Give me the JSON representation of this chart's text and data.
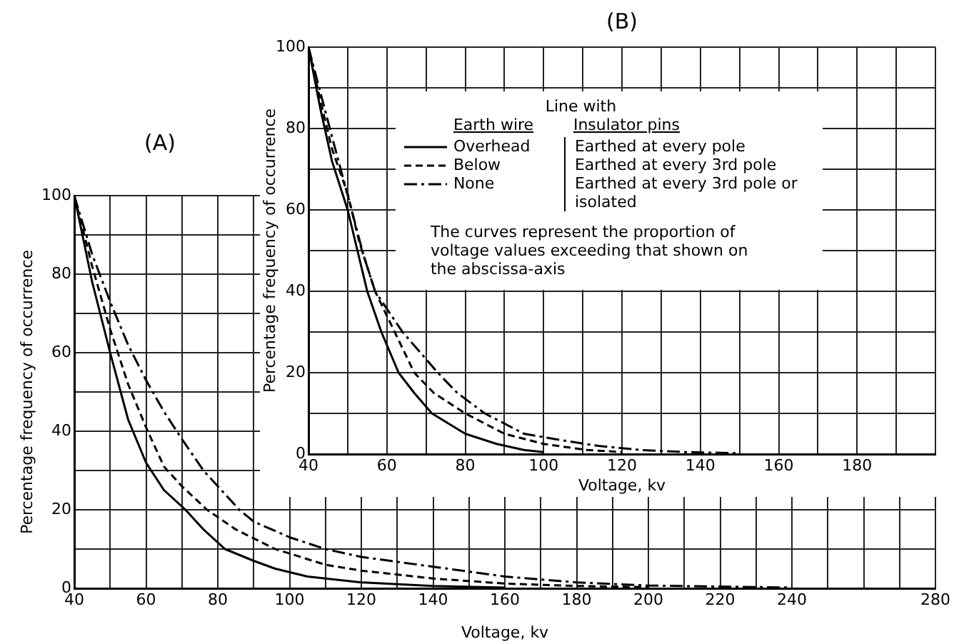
{
  "chart_data": [
    {
      "type": "line",
      "title": "(A)",
      "xlabel": "Voltage, kv",
      "ylabel": "Percentage frequency of occurrence",
      "xlim": [
        40,
        280
      ],
      "xticks": [
        40,
        {
          "value": 50,
          "label": null
        },
        60,
        {
          "value": 70,
          "label": null
        },
        80,
        {
          "value": 90,
          "label": null
        },
        100,
        {
          "value": 110,
          "label": null
        },
        120,
        {
          "value": 130,
          "label": null
        },
        140,
        {
          "value": 150,
          "label": null
        },
        160,
        {
          "value": 170,
          "label": null
        },
        180,
        {
          "value": 190,
          "label": null
        },
        200,
        {
          "value": 210,
          "label": null
        },
        220,
        {
          "value": 230,
          "label": null
        },
        240,
        {
          "value": 250,
          "label": null
        },
        {
          "value": 260,
          "label": null
        },
        {
          "value": 270,
          "label": null
        },
        280
      ],
      "ylim": [
        0,
        100
      ],
      "yticks": [
        0,
        {
          "value": 10,
          "label": null
        },
        20,
        {
          "value": 30,
          "label": null
        },
        40,
        {
          "value": 50,
          "label": null
        },
        60,
        {
          "value": 70,
          "label": null
        },
        80,
        {
          "value": 90,
          "label": null
        },
        100
      ],
      "grid": true,
      "marker": "none",
      "series": [
        {
          "color": "#000000",
          "line_style": "solid",
          "x": [
            40,
            45,
            50,
            55,
            60,
            65,
            71,
            76,
            82,
            90,
            96,
            105,
            120,
            140,
            160
          ],
          "values": [
            100,
            78,
            60,
            43,
            32,
            25,
            20,
            15,
            10,
            7,
            5,
            3,
            1.5,
            0.6,
            0.2
          ]
        },
        {
          "color": "#000000",
          "line_style": "dashed",
          "x": [
            40,
            45,
            50,
            55,
            60,
            65,
            70,
            77,
            85,
            96,
            110,
            120,
            140,
            160,
            180,
            200
          ],
          "values": [
            100,
            82,
            66,
            52,
            41,
            31,
            26,
            20,
            15,
            10,
            6,
            4.5,
            2.5,
            1.2,
            0.6,
            0.3
          ]
        },
        {
          "color": "#000000",
          "line_style": "dotted",
          "x": [
            40,
            45,
            50,
            55,
            60,
            65,
            70,
            76,
            80,
            86,
            90,
            100,
            110,
            120,
            140,
            160,
            180,
            200,
            240
          ],
          "values": [
            100,
            85,
            73,
            62,
            53,
            45,
            38,
            30,
            26,
            20,
            17,
            13,
            10,
            8,
            5.5,
            3,
            1.5,
            0.7,
            0.2
          ]
        }
      ]
    },
    {
      "type": "line",
      "title": "(B)",
      "xlabel": "Voltage, kv",
      "ylabel": "Percentage frequency of occurrence",
      "xlim": [
        40,
        200
      ],
      "xticks": [
        40,
        {
          "value": 50,
          "label": null
        },
        60,
        {
          "value": 70,
          "label": null
        },
        80,
        {
          "value": 90,
          "label": null
        },
        100,
        {
          "value": 110,
          "label": null
        },
        120,
        {
          "value": 130,
          "label": null
        },
        140,
        {
          "value": 150,
          "label": null
        },
        160,
        {
          "value": 170,
          "label": null
        },
        180,
        {
          "value": 190,
          "label": null
        },
        {
          "value": 200,
          "label": null
        }
      ],
      "ylim": [
        0,
        100
      ],
      "yticks": [
        0,
        {
          "value": 10,
          "label": null
        },
        20,
        {
          "value": 30,
          "label": null
        },
        40,
        {
          "value": 50,
          "label": null
        },
        60,
        {
          "value": 70,
          "label": null
        },
        80,
        {
          "value": 90,
          "label": null
        },
        100
      ],
      "grid": true,
      "marker": "none",
      "legend": "top",
      "legend_title": "Line with",
      "annotations": [
        "Earth wire",
        "Insulator pins",
        "Earthed at every pole",
        "Earthed at every 3rd pole",
        "Earthed at every 3rd pole or isolated",
        "The curves represent the proportion of voltage values exceeding that shown on the abscissa-axis"
      ],
      "series": [
        {
          "name": "Overhead",
          "color": "#000000",
          "line_style": "solid",
          "x": [
            40,
            43,
            46,
            50,
            55,
            58.6,
            63,
            67,
            71.5,
            80,
            88,
            95,
            100
          ],
          "values": [
            100,
            85,
            72,
            60,
            40,
            30,
            20,
            15,
            10,
            5,
            2.5,
            1,
            0.5
          ]
        },
        {
          "name": "Below",
          "color": "#000000",
          "line_style": "dashed",
          "x": [
            40,
            43,
            46,
            50,
            53,
            57,
            62,
            67,
            72,
            80,
            90,
            100,
            111,
            120
          ],
          "values": [
            100,
            87,
            75,
            64,
            52,
            40,
            30,
            20,
            15,
            10,
            5,
            2.5,
            1,
            0.5
          ]
        },
        {
          "name": "None",
          "color": "#000000",
          "line_style": "dotted",
          "x": [
            40,
            43,
            46,
            51,
            54,
            57,
            64,
            73,
            78,
            85,
            95,
            104,
            114,
            125,
            136,
            150
          ],
          "values": [
            100,
            89,
            78,
            60,
            49,
            40,
            30,
            20,
            15,
            10,
            5,
            3.5,
            2,
            1,
            0.5,
            0.2
          ]
        }
      ]
    }
  ]
}
